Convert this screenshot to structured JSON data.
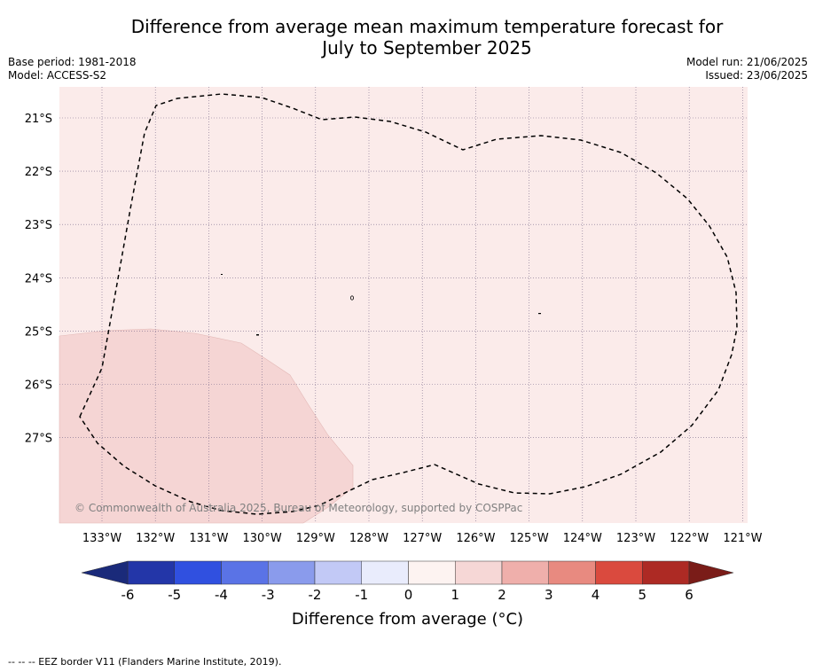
{
  "title": {
    "line1": "Difference from average mean maximum temperature forecast for",
    "line2": "July to September 2025"
  },
  "info_left": {
    "base_period": "Base period: 1981-2018",
    "model": "Model: ACCESS-S2"
  },
  "info_right": {
    "model_run": "Model run: 21/06/2025",
    "issued": "Issued: 23/06/2025"
  },
  "map": {
    "lon_labels": [
      "133°W",
      "132°W",
      "131°W",
      "130°W",
      "129°W",
      "128°W",
      "127°W",
      "126°W",
      "125°W",
      "124°W",
      "123°W",
      "122°W",
      "121°W"
    ],
    "lat_labels": [
      "21°S",
      "22°S",
      "23°S",
      "24°S",
      "25°S",
      "26°S",
      "27°S"
    ],
    "background_color": "#fbebea",
    "warm_region_color": "#f5d5d4",
    "copyright": "© Commonwealth of Australia 2025, Bureau of Meteorology, supported by COSPPac"
  },
  "colorbar": {
    "tick_labels": [
      "-6",
      "-5",
      "-4",
      "-3",
      "-2",
      "-1",
      "0",
      "1",
      "2",
      "3",
      "4",
      "5",
      "6"
    ],
    "colors": [
      "#2336a8",
      "#3050e0",
      "#5a73e6",
      "#8a9bec",
      "#c2c9f6",
      "#e9ecfc",
      "#fdf3f1",
      "#f6d7d6",
      "#efafab",
      "#e88a80",
      "#da4a3e",
      "#ad2a24"
    ],
    "low_extend_color": "#1a2a7a",
    "high_extend_color": "#7a1c18",
    "label": "Difference from average (°C)"
  },
  "footnote": "-- -- -- EEZ border V11 (Flanders Marine Institute, 2019)."
}
